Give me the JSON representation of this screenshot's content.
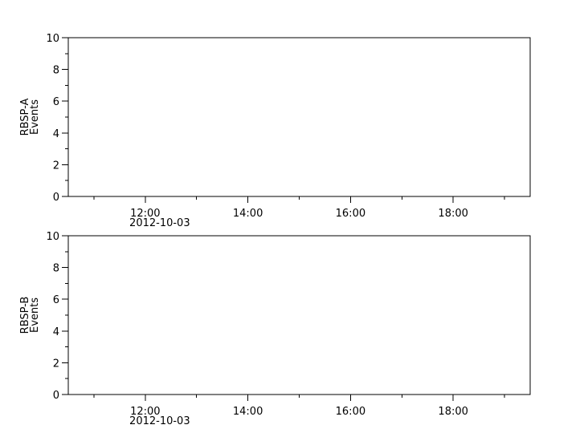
{
  "chart_data": [
    {
      "type": "line",
      "ylabel": [
        "RBSP-A",
        "Events"
      ],
      "ylim": [
        0,
        10
      ],
      "yticks": [
        "0",
        "2",
        "4",
        "6",
        "8",
        "10"
      ],
      "xlim": [
        "2012-10-03 10:30",
        "2012-10-03 19:30"
      ],
      "xticks": [
        "12:00",
        "14:00",
        "16:00",
        "18:00"
      ],
      "xdate_label": "2012-10-03",
      "series": [],
      "grid": false
    },
    {
      "type": "line",
      "ylabel": [
        "RBSP-B",
        "Events"
      ],
      "ylim": [
        0,
        10
      ],
      "yticks": [
        "0",
        "2",
        "4",
        "6",
        "8",
        "10"
      ],
      "xlim": [
        "2012-10-03 10:30",
        "2012-10-03 19:30"
      ],
      "xticks": [
        "12:00",
        "14:00",
        "16:00",
        "18:00"
      ],
      "xdate_label": "2012-10-03",
      "series": [],
      "grid": false
    }
  ],
  "colors": {
    "axis": "#000000",
    "background": "#ffffff"
  }
}
